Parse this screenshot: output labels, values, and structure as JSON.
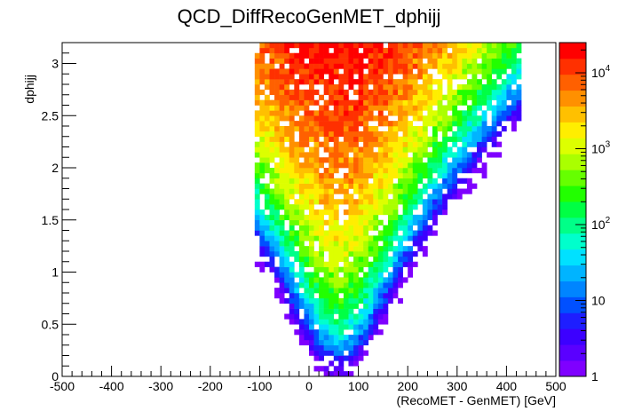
{
  "chart_data": {
    "type": "heatmap",
    "title": "QCD_DiffRecoGenMET_dphijj",
    "xlabel": "(RecoMET - GenMET)  [GeV]",
    "ylabel": "dphijj",
    "xlim": [
      -500,
      500
    ],
    "ylim": [
      0,
      3.2
    ],
    "x_ticks": [
      "-500",
      "-400",
      "-300",
      "-200",
      "-100",
      "0",
      "100",
      "200",
      "300",
      "400",
      "500"
    ],
    "y_ticks": [
      "0",
      "0.5",
      "1",
      "1.5",
      "2",
      "2.5",
      "3"
    ],
    "colorbar": {
      "scale": "log",
      "range": [
        1,
        25000
      ],
      "tick_labels": [
        {
          "value": 1,
          "label": "1"
        },
        {
          "value": 10,
          "label": "10"
        },
        {
          "value": 100,
          "label": "10",
          "exp": "2"
        },
        {
          "value": 1000,
          "label": "10",
          "exp": "3"
        },
        {
          "value": 10000,
          "label": "10",
          "exp": "4"
        }
      ]
    },
    "bin_width_x": 10,
    "bin_height_y": 0.05,
    "palette": [
      "#7f00ff",
      "#5a00ff",
      "#3c00ff",
      "#1e1eff",
      "#0050ff",
      "#0085ff",
      "#00b4ff",
      "#00e1ff",
      "#00ffcc",
      "#00ff88",
      "#00ff44",
      "#22ff00",
      "#66ff00",
      "#aaff00",
      "#ddff00",
      "#ffee00",
      "#ffc000",
      "#ff9000",
      "#ff6000",
      "#ff3000",
      "#ff0000"
    ],
    "grid": false,
    "legend": "colorbar-right"
  }
}
